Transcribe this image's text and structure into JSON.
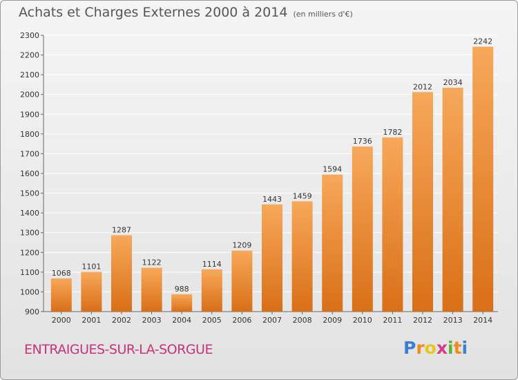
{
  "title": "Achats et Charges Externes 2000 à 2014",
  "subtitle": "(en milliers d'€)",
  "commune": "ENTRAIGUES-SUR-LA-SORGUE",
  "logo": {
    "letters": [
      "P",
      "r",
      "o",
      "x",
      "i",
      "t",
      "i"
    ],
    "colors": [
      "#3a7fd6",
      "#f08a1a",
      "#e8c61a",
      "#d63a8a",
      "#5ab43a",
      "#f08a1a",
      "#3a7fd6"
    ]
  },
  "colors": {
    "bar_top": "#f7a85a",
    "bar_bottom": "#d96f17",
    "grid": "#ffffff",
    "text": "#333333"
  },
  "chart_data": {
    "type": "bar",
    "title": "Achats et Charges Externes 2000 à 2014",
    "subtitle": "(en milliers d'€)",
    "categories": [
      "2000",
      "2001",
      "2002",
      "2003",
      "2004",
      "2005",
      "2006",
      "2007",
      "2008",
      "2009",
      "2010",
      "2011",
      "2012",
      "2013",
      "2014"
    ],
    "values": [
      1068,
      1101,
      1287,
      1122,
      988,
      1114,
      1209,
      1443,
      1459,
      1594,
      1736,
      1782,
      2012,
      2034,
      2242
    ],
    "ylim": [
      900,
      2300
    ],
    "yticks": [
      900,
      1000,
      1100,
      1200,
      1300,
      1400,
      1500,
      1600,
      1700,
      1800,
      1900,
      2000,
      2100,
      2200,
      2300
    ],
    "grid": true,
    "xlabel": "",
    "ylabel": ""
  }
}
